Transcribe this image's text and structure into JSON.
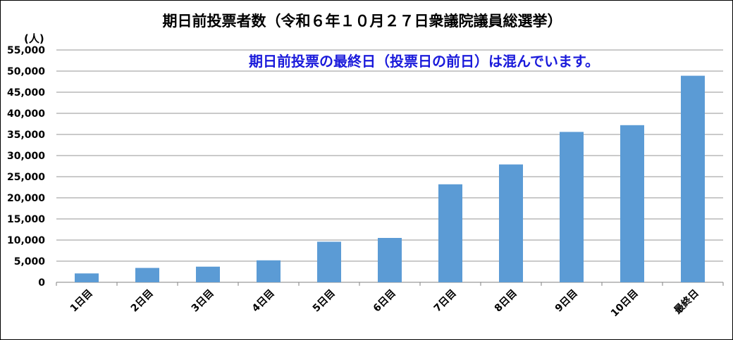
{
  "chart_data": {
    "type": "bar",
    "title": "期日前投票者数（令和６年１０月２７日衆議院議員総選挙）",
    "annotation": "期日前投票の最終日（投票日の前日）は混んでいます。",
    "annotation_color": "#1a1adb",
    "bar_color": "#5b9bd5",
    "grid": true,
    "y_unit_label": "(人)",
    "ylim": [
      0,
      55000
    ],
    "y_ticks": [
      0,
      5000,
      10000,
      15000,
      20000,
      25000,
      30000,
      35000,
      40000,
      45000,
      50000,
      55000
    ],
    "y_tick_labels": [
      "0",
      "5,000",
      "10,000",
      "15,000",
      "20,000",
      "25,000",
      "30,000",
      "35,000",
      "40,000",
      "45,000",
      "50,000",
      "55,000"
    ],
    "categories": [
      "1日目",
      "2日目",
      "3日目",
      "4日目",
      "5日目",
      "6日目",
      "7日目",
      "8日目",
      "9日目",
      "10日目",
      "最終日"
    ],
    "values": [
      2100,
      3400,
      3700,
      5200,
      9600,
      10500,
      23200,
      27900,
      35600,
      37200,
      48900
    ]
  }
}
